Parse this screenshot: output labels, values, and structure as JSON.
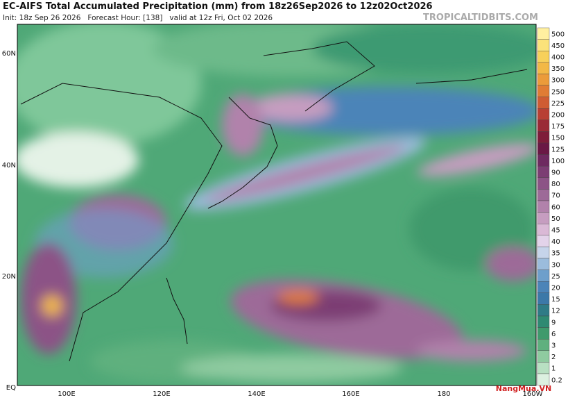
{
  "header": {
    "title": "EC-AIFS Total Accumulated Precipitation (mm) from 18z26Sep2026 to 12z02Oct2026",
    "subtitle": "Init: 18z Sep 26 2026   Forecast Hour: [138]   valid at 12z Fri, Oct 02 2026",
    "watermark": "TROPICALTIDBITS.COM"
  },
  "map": {
    "lat_labels": [
      "60N",
      "40N",
      "20N",
      "EQ"
    ],
    "lon_labels": [
      "100E",
      "120E",
      "140E",
      "160E",
      "180",
      "160W"
    ]
  },
  "colorbar": {
    "levels": [
      {
        "value": 500,
        "color": "#fff0a0"
      },
      {
        "value": 450,
        "color": "#fbe27a"
      },
      {
        "value": 400,
        "color": "#f7d05a"
      },
      {
        "value": 350,
        "color": "#f2b846"
      },
      {
        "value": 300,
        "color": "#eb9b3a"
      },
      {
        "value": 250,
        "color": "#e07c34"
      },
      {
        "value": 225,
        "color": "#cf5c33"
      },
      {
        "value": 200,
        "color": "#b84034"
      },
      {
        "value": 175,
        "color": "#9a2a36"
      },
      {
        "value": 150,
        "color": "#7e1c3a"
      },
      {
        "value": 125,
        "color": "#6a1845"
      },
      {
        "value": 100,
        "color": "#6e2a60"
      },
      {
        "value": 90,
        "color": "#7c3d73"
      },
      {
        "value": 80,
        "color": "#8c5386"
      },
      {
        "value": 70,
        "color": "#9d6a98"
      },
      {
        "value": 60,
        "color": "#b182ab"
      },
      {
        "value": 50,
        "color": "#c69dc0"
      },
      {
        "value": 45,
        "color": "#dab9d6"
      },
      {
        "value": 40,
        "color": "#e3d3ea"
      },
      {
        "value": 35,
        "color": "#c6d4ea"
      },
      {
        "value": 30,
        "color": "#9bbcdc"
      },
      {
        "value": 25,
        "color": "#6e9fcb"
      },
      {
        "value": 20,
        "color": "#4c84b8"
      },
      {
        "value": 15,
        "color": "#3c78a8"
      },
      {
        "value": 12,
        "color": "#2f7b86"
      },
      {
        "value": 9,
        "color": "#2f8a72"
      },
      {
        "value": 6,
        "color": "#3f9a6c"
      },
      {
        "value": 3,
        "color": "#5fb07e"
      },
      {
        "value": 2,
        "color": "#8fcba0"
      },
      {
        "value": 1,
        "color": "#b8e0c2"
      },
      {
        "value": 0.2,
        "color": "#dcf0e0"
      }
    ]
  },
  "logo": {
    "text": "NangMua.VN"
  }
}
